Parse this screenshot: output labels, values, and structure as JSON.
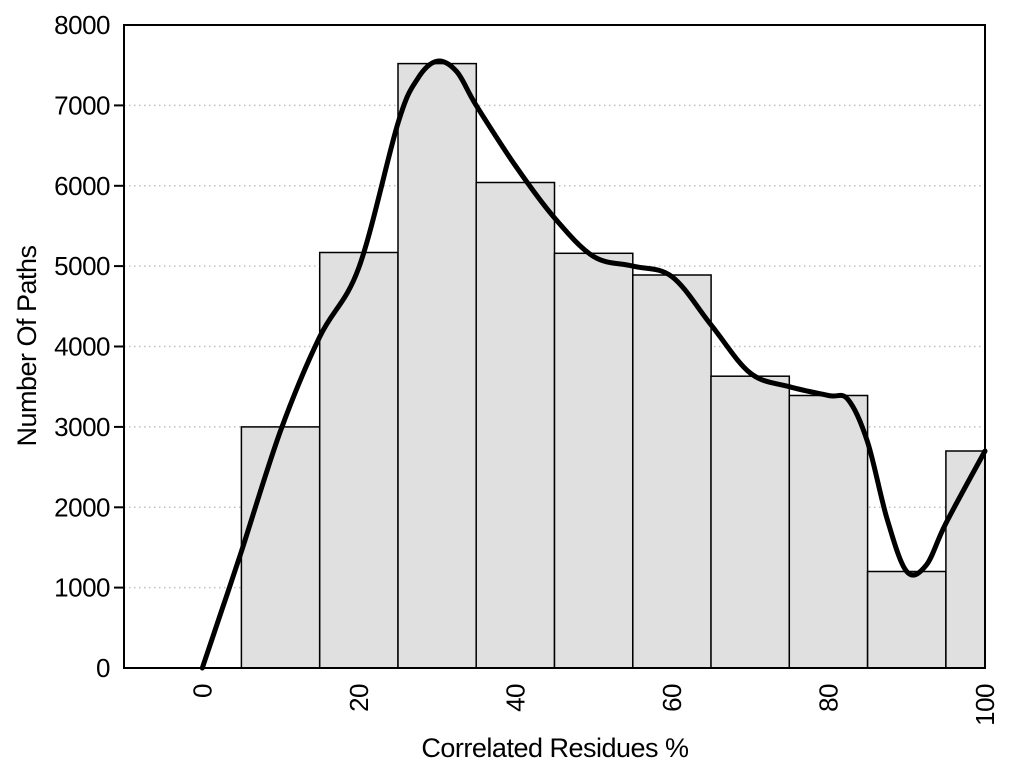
{
  "chart_data": {
    "type": "bar",
    "variant": "histogram with smooth density curve overlay",
    "title": "",
    "xlabel": "Correlated Residues %",
    "ylabel": "Number Of Paths",
    "xlim": [
      -10,
      100
    ],
    "ylim": [
      0,
      8000
    ],
    "x_tick_values": [
      0,
      20,
      40,
      60,
      80,
      100
    ],
    "x_tick_labels": [
      "0",
      "20",
      "40",
      "60",
      "80",
      "100"
    ],
    "x_tick_label_rotation_deg": -90,
    "y_tick_values": [
      0,
      1000,
      2000,
      3000,
      4000,
      5000,
      6000,
      7000,
      8000
    ],
    "y_tick_labels": [
      "0",
      "1000",
      "2000",
      "3000",
      "4000",
      "5000",
      "6000",
      "7000",
      "8000"
    ],
    "grid": {
      "style": "horizontal-dotted",
      "at": [
        1000,
        2000,
        3000,
        4000,
        5000,
        6000,
        7000
      ]
    },
    "legend": "none",
    "bins": [
      {
        "x0": 5,
        "x1": 15,
        "count": 3000
      },
      {
        "x0": 15,
        "x1": 25,
        "count": 5170
      },
      {
        "x0": 25,
        "x1": 35,
        "count": 7520
      },
      {
        "x0": 35,
        "x1": 45,
        "count": 6040
      },
      {
        "x0": 45,
        "x1": 55,
        "count": 5160
      },
      {
        "x0": 55,
        "x1": 65,
        "count": 4890
      },
      {
        "x0": 65,
        "x1": 75,
        "count": 3630
      },
      {
        "x0": 75,
        "x1": 85,
        "count": 3390
      },
      {
        "x0": 85,
        "x1": 95,
        "count": 1200
      },
      {
        "x0": 95,
        "x1": 100,
        "count": 2700
      }
    ],
    "curve_points": [
      [
        0,
        0
      ],
      [
        2.5,
        720
      ],
      [
        5,
        1450
      ],
      [
        10,
        2950
      ],
      [
        15,
        4120
      ],
      [
        20,
        4980
      ],
      [
        25,
        6780
      ],
      [
        27.5,
        7330
      ],
      [
        30,
        7550
      ],
      [
        32.5,
        7420
      ],
      [
        35,
        7000
      ],
      [
        40,
        6250
      ],
      [
        45,
        5600
      ],
      [
        50,
        5120
      ],
      [
        55,
        5000
      ],
      [
        60,
        4870
      ],
      [
        65,
        4270
      ],
      [
        70,
        3670
      ],
      [
        75,
        3500
      ],
      [
        80,
        3390
      ],
      [
        82.5,
        3340
      ],
      [
        85,
        2810
      ],
      [
        87.5,
        1850
      ],
      [
        90,
        1200
      ],
      [
        92.5,
        1280
      ],
      [
        95,
        1800
      ],
      [
        100,
        2700
      ]
    ],
    "colors": {
      "bar_fill": "#e0e0e0",
      "bar_stroke": "#000000",
      "curve": "#000000",
      "grid_dots": "#c0c0c0",
      "axis": "#000000",
      "background": "#ffffff",
      "text": "#000000"
    }
  }
}
